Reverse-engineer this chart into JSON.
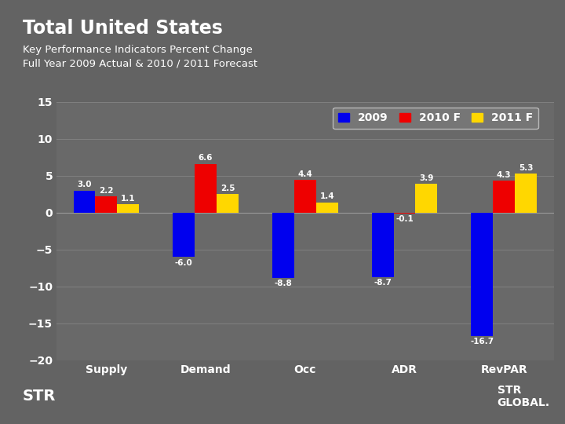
{
  "title": "Total United States",
  "subtitle_line1": "Key Performance Indicators Percent Change",
  "subtitle_line2": "Full Year 2009 Actual & 2010 / 2011 Forecast",
  "categories": [
    "Supply",
    "Demand",
    "Occ",
    "ADR",
    "RevPAR"
  ],
  "series": {
    "2009": [
      3.0,
      -6.0,
      -8.8,
      -8.7,
      -16.7
    ],
    "2010 F": [
      2.2,
      6.6,
      4.4,
      -0.1,
      4.3
    ],
    "2011 F": [
      1.1,
      2.5,
      1.4,
      3.9,
      5.3
    ]
  },
  "colors": {
    "2009": "#0000EE",
    "2010 F": "#EE0000",
    "2011 F": "#FFD700"
  },
  "ylim": [
    -20,
    15
  ],
  "yticks": [
    -20,
    -15,
    -10,
    -5,
    0,
    5,
    10,
    15
  ],
  "bg_color": "#636363",
  "plot_bg_color": "#5a5a5a",
  "chart_bg_color": "#696969",
  "title_color": "#FFFFFF",
  "tick_color": "#FFFFFF",
  "grid_color": "#808080",
  "footer_color": "#CC5500",
  "bar_width": 0.22,
  "legend_bg": "#7a7a7a",
  "legend_edge": "#cccccc"
}
